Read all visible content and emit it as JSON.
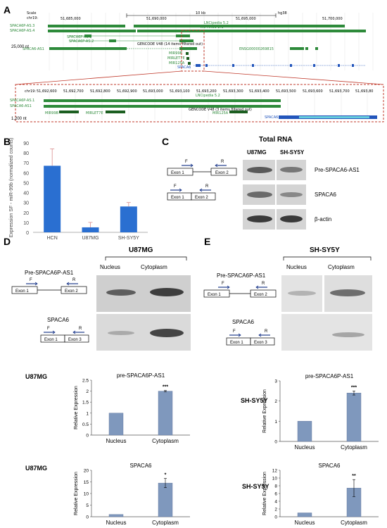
{
  "panels": {
    "a": "A",
    "b": "B",
    "c": "C",
    "d": "D",
    "e": "E"
  },
  "browser": {
    "scale_label": "Scale",
    "chrom_label": "chr19:",
    "scale_text": "10 kb",
    "assembly": "hg38",
    "top_coords": [
      "51,685,000",
      "51,690,000",
      "51,695,000",
      "51,700,000"
    ],
    "left_tracks": [
      "SPACA6P-AS.3",
      "SPACA6P-AS.4"
    ],
    "inner_tracks": [
      "SPACA6P-AS.1",
      "SPACA6P-AS.2",
      "SPACA6-AS1"
    ],
    "lnc_labels": [
      "LNCipedia 5.2",
      "lnc-HAS1-2:1",
      "lnc-RAS1-2.2"
    ],
    "gencode_top": "GENCODE V48 (14 items filtered out)",
    "mirna_top": [
      "MIR99B",
      "MIRLET7E",
      "MIR125A",
      "SPACA6"
    ],
    "enso_label": "ENSG00000269815",
    "zoom_top": "25,000 nt",
    "bottom_coords": [
      "51,692,600",
      "51,692,700",
      "51,692,800",
      "51,692,900",
      "51,693,000",
      "51,693,100",
      "51,693,200",
      "51,693,300",
      "51,693,400",
      "51,693,500",
      "51,693,600",
      "51,693,700",
      "51,693,80"
    ],
    "bottom_chrom": "chr19:",
    "bottom_lnc": "LNCipedia 5.2",
    "bottom_tracks": [
      "SPACA6P-AS.1",
      "SPACA6-AS1"
    ],
    "gencode_bottom": "GENCODE V48 (3 items filtered out)",
    "bottom_mirna": [
      "MIR99B",
      "MIRLET7E",
      "MIR125A",
      "SPACA6"
    ],
    "zoom_bottom": "1,200 nt"
  },
  "chart_b": {
    "type": "bar",
    "categories": [
      "HCN",
      "U87MG",
      "SH-SY5Y"
    ],
    "values": [
      67,
      5,
      26
    ],
    "errors": [
      17,
      5,
      4
    ],
    "ylabel": "Expression SF - miR-99b (normalized counts)",
    "ylim": [
      0,
      90
    ],
    "yticks": [
      "0",
      "10",
      "20",
      "30",
      "40",
      "50",
      "60",
      "70",
      "80",
      "90"
    ],
    "color": "#2a6fd1"
  },
  "panel_c": {
    "title": "Total RNA",
    "lanes": [
      "U87MG",
      "SH-SY5Y"
    ],
    "rows": [
      "Pre-SPACA6-AS1",
      "SPACA6",
      "β-actin"
    ],
    "schematic": {
      "exon1": "Exon 1",
      "exon2": "Exon 2",
      "f": "F",
      "r": "R"
    }
  },
  "panel_d": {
    "cell": "U87MG",
    "lanes": [
      "Nucleus",
      "Cytoplasm"
    ],
    "schem1": {
      "title": "Pre-SPACA6P-AS1",
      "exon1": "Exon 1",
      "exon2": "Exon 2",
      "f": "F",
      "r": "R"
    },
    "schem2": {
      "title": "SPACA6",
      "exon1": "Exon 1",
      "exon3": "Exon 3",
      "f": "F",
      "r": "R"
    },
    "chart1": {
      "cell": "U87MG",
      "title": "pre-SPACA6P-AS1",
      "ylabel": "Relative Expression",
      "categories": [
        "Nucleus",
        "Cytoplasm"
      ],
      "values": [
        1.0,
        2.0
      ],
      "errors": [
        0,
        0.03
      ],
      "ylim": [
        0,
        2.5
      ],
      "yticks": [
        "0",
        "0.5",
        "1",
        "1.5",
        "2",
        "2.5"
      ],
      "sig": "***"
    },
    "chart2": {
      "cell": "U87MG",
      "title": "SPACA6",
      "ylabel": "Relative Expression",
      "categories": [
        "Nucleus",
        "Cytoplasm"
      ],
      "values": [
        1.0,
        14.5
      ],
      "errors": [
        0,
        2.0
      ],
      "ylim": [
        0,
        20
      ],
      "yticks": [
        "0",
        "5",
        "10",
        "15",
        "20"
      ],
      "sig": "*"
    }
  },
  "panel_e": {
    "cell": "SH-SY5Y",
    "lanes": [
      "Nucleus",
      "Cytoplasm"
    ],
    "schem1": {
      "title": "Pre-SPACA6P-AS1",
      "exon1": "Exon 1",
      "exon2": "Exon 2",
      "f": "F",
      "r": "R"
    },
    "schem2": {
      "title": "SPACA6",
      "exon1": "Exon 1",
      "exon3": "Exon 3",
      "f": "F",
      "r": "R"
    },
    "chart1": {
      "cell": "SH-SY5Y",
      "title": "pre-SPACA6P-AS1",
      "ylabel": "Relative Expression",
      "categories": [
        "Nucleus",
        "Cytoplasm"
      ],
      "values": [
        1.0,
        2.4
      ],
      "errors": [
        0,
        0.1
      ],
      "ylim": [
        0,
        3
      ],
      "yticks": [
        "0",
        "1",
        "2",
        "3"
      ],
      "sig": "***"
    },
    "chart2": {
      "cell": "SH-SY5Y",
      "title": "SPACA6",
      "ylabel": "Relative Expression",
      "categories": [
        "Nucleus",
        "Cytoplasm"
      ],
      "values": [
        1.0,
        7.4
      ],
      "errors": [
        0,
        2.2
      ],
      "ylim": [
        0,
        12
      ],
      "yticks": [
        "0",
        "2",
        "4",
        "6",
        "8",
        "10",
        "12"
      ],
      "sig": "**"
    }
  },
  "chart_data": [
    {
      "type": "bar",
      "categories": [
        "HCN",
        "U87MG",
        "SH-SY5Y"
      ],
      "values": [
        67,
        5,
        26
      ],
      "ylabel": "Expression SF - miR-99b (normalized counts)",
      "ylim": [
        0,
        90
      ]
    },
    {
      "type": "bar",
      "categories": [
        "Nucleus",
        "Cytoplasm"
      ],
      "values": [
        1.0,
        2.0
      ],
      "title": "pre-SPACA6P-AS1",
      "ylabel": "Relative Expression",
      "ylim": [
        0,
        2.5
      ]
    },
    {
      "type": "bar",
      "categories": [
        "Nucleus",
        "Cytoplasm"
      ],
      "values": [
        1.0,
        14.5
      ],
      "title": "SPACA6",
      "ylabel": "Relative Expression",
      "ylim": [
        0,
        20
      ]
    },
    {
      "type": "bar",
      "categories": [
        "Nucleus",
        "Cytoplasm"
      ],
      "values": [
        1.0,
        2.4
      ],
      "title": "pre-SPACA6P-AS1",
      "ylabel": "Relative Expression",
      "ylim": [
        0,
        3
      ]
    },
    {
      "type": "bar",
      "categories": [
        "Nucleus",
        "Cytoplasm"
      ],
      "values": [
        1.0,
        7.4
      ],
      "title": "SPACA6",
      "ylabel": "Relative Expression",
      "ylim": [
        0,
        12
      ]
    }
  ]
}
